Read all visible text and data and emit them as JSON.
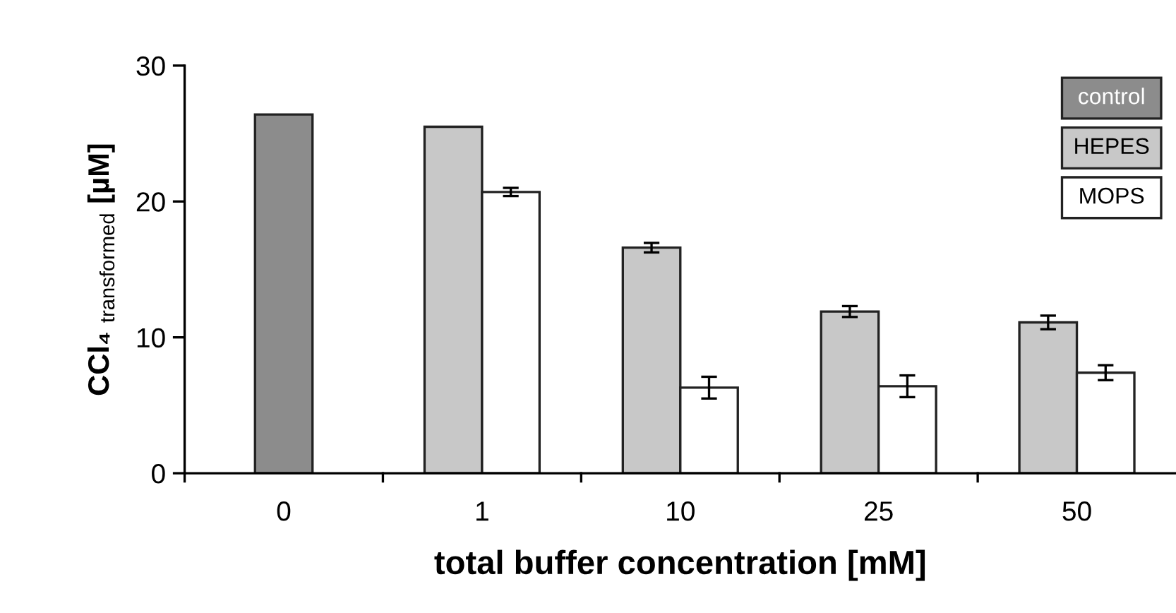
{
  "chart_data": {
    "type": "bar",
    "xlabel": "total buffer concentration [mM]",
    "ylabel": "CCl₄ $_{transformed}$ [µM]",
    "categories": [
      "0",
      "1",
      "10",
      "25",
      "50"
    ],
    "series": [
      {
        "name": "control",
        "color": "#8c8c8c",
        "values": [
          26.4,
          null,
          null,
          null,
          null
        ]
      },
      {
        "name": "HEPES",
        "color": "#c8c8c8",
        "values": [
          null,
          25.5,
          16.6,
          11.9,
          11.1
        ],
        "errors": [
          null,
          null,
          0.35,
          0.4,
          0.5
        ]
      },
      {
        "name": "MOPS",
        "color": "#ffffff",
        "values": [
          null,
          20.7,
          6.3,
          6.4,
          7.4
        ],
        "errors": [
          null,
          0.3,
          0.8,
          0.8,
          0.55
        ]
      }
    ],
    "ylim": [
      0,
      30
    ],
    "yticks": [
      0,
      10,
      20,
      30
    ],
    "grid": false,
    "legend": "top right"
  }
}
